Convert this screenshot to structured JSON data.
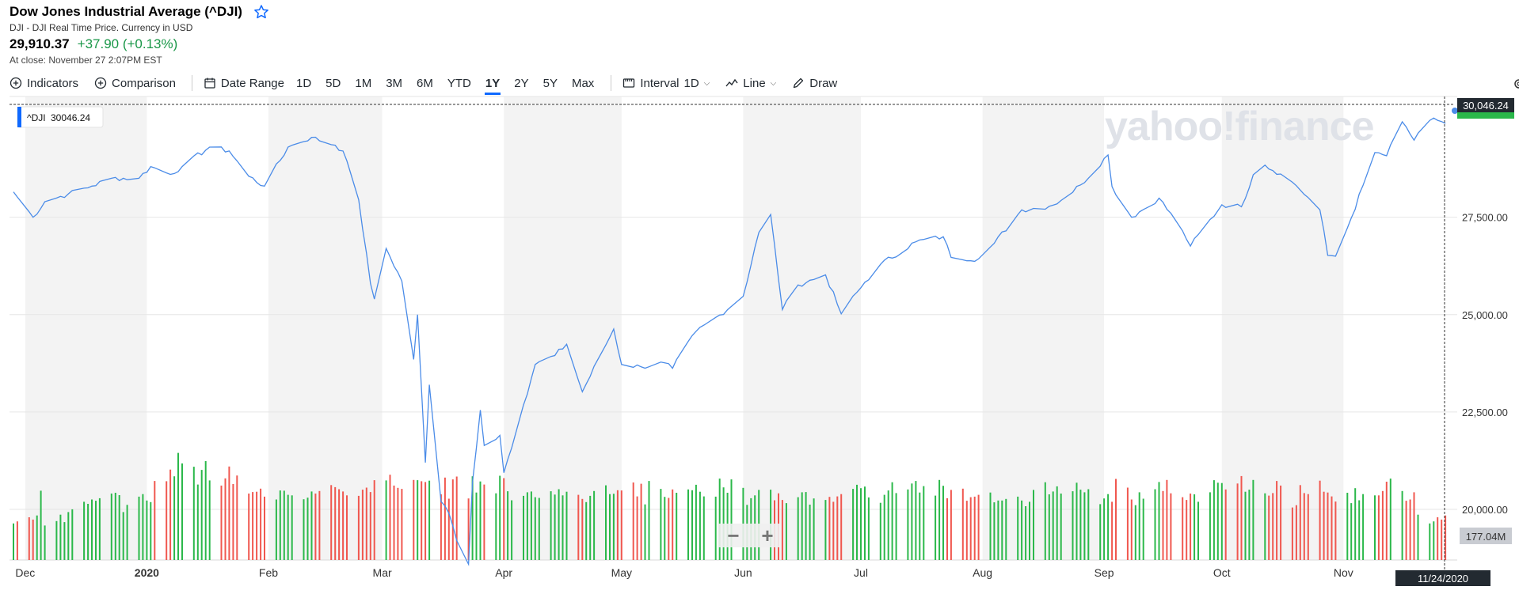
{
  "header": {
    "title": "Dow Jones Industrial Average (^DJI)",
    "subtitle": "DJI - DJI Real Time Price. Currency in USD",
    "price": "29,910.37",
    "change": "+37.90 (+0.13%)",
    "at_close": "At close: November 27 2:07PM EST"
  },
  "toolbar": {
    "indicators": "Indicators",
    "comparison": "Comparison",
    "date_range": "Date Range",
    "ranges": [
      "1D",
      "5D",
      "1M",
      "3M",
      "6M",
      "YTD",
      "1Y",
      "2Y",
      "5Y",
      "Max"
    ],
    "active_range": "1Y",
    "interval_label": "Interval",
    "interval_value": "1D",
    "chart_type": "Line",
    "draw": "Draw"
  },
  "tooltip": {
    "symbol": "^DJI",
    "value": "30046.24"
  },
  "price_tag": "30,046.24",
  "volume_tag": "177.04M",
  "date_tag": "11/24/2020",
  "watermark": "yahoo!finance",
  "zoom": {
    "minus": "−",
    "plus": "+"
  },
  "colors": {
    "line": "#4b8ce8",
    "up": "#2bb84a",
    "down": "#f0574f",
    "band": "#f3f3f3",
    "accent": "#0f69ff",
    "positive": "#1a9748"
  },
  "chart_data": {
    "type": "line",
    "title": "",
    "xlabel": "",
    "ylabel": "",
    "ylim": [
      18700,
      30600
    ],
    "yticks": [
      20000,
      22500,
      25000,
      27500
    ],
    "ytick_labels": [
      "20,000.00",
      "22,500.00",
      "25,000.00",
      "27,500.00"
    ],
    "month_labels": [
      "Dec",
      "2020",
      "Feb",
      "Mar",
      "Apr",
      "May",
      "Jun",
      "Jul",
      "Aug",
      "Sep",
      "Oct",
      "Nov"
    ],
    "grid": true,
    "series": [
      {
        "anchors": [
          [
            "2019-11-28",
            28150
          ],
          [
            "2019-12-03",
            27500
          ],
          [
            "2019-12-06",
            27900
          ],
          [
            "2019-12-12",
            28100
          ],
          [
            "2019-12-18",
            28300
          ],
          [
            "2019-12-23",
            28500
          ],
          [
            "2019-12-30",
            28500
          ],
          [
            "2020-01-02",
            28800
          ],
          [
            "2020-01-07",
            28600
          ],
          [
            "2020-01-10",
            28800
          ],
          [
            "2020-01-17",
            29300
          ],
          [
            "2020-01-22",
            29200
          ],
          [
            "2020-01-27",
            28550
          ],
          [
            "2020-01-31",
            28300
          ],
          [
            "2020-02-06",
            29300
          ],
          [
            "2020-02-12",
            29550
          ],
          [
            "2020-02-18",
            29350
          ],
          [
            "2020-02-20",
            29200
          ],
          [
            "2020-02-24",
            27950
          ],
          [
            "2020-02-27",
            25800
          ],
          [
            "2020-02-28",
            25400
          ],
          [
            "2020-03-02",
            26700
          ],
          [
            "2020-03-06",
            25860
          ],
          [
            "2020-03-09",
            23850
          ],
          [
            "2020-03-10",
            25000
          ],
          [
            "2020-03-12",
            21200
          ],
          [
            "2020-03-13",
            23200
          ],
          [
            "2020-03-16",
            20200
          ],
          [
            "2020-03-18",
            19900
          ],
          [
            "2020-03-20",
            19200
          ],
          [
            "2020-03-23",
            18590
          ],
          [
            "2020-03-24",
            20700
          ],
          [
            "2020-03-26",
            22550
          ],
          [
            "2020-03-27",
            21640
          ],
          [
            "2020-03-31",
            21900
          ],
          [
            "2020-04-01",
            20940
          ],
          [
            "2020-04-06",
            22680
          ],
          [
            "2020-04-09",
            23720
          ],
          [
            "2020-04-14",
            23950
          ],
          [
            "2020-04-17",
            24240
          ],
          [
            "2020-04-21",
            23020
          ],
          [
            "2020-04-29",
            24630
          ],
          [
            "2020-05-01",
            23720
          ],
          [
            "2020-05-06",
            23660
          ],
          [
            "2020-05-12",
            23760
          ],
          [
            "2020-05-14",
            23620
          ],
          [
            "2020-05-20",
            24570
          ],
          [
            "2020-05-26",
            24990
          ],
          [
            "2020-06-01",
            25470
          ],
          [
            "2020-06-05",
            27110
          ],
          [
            "2020-06-08",
            27570
          ],
          [
            "2020-06-11",
            25130
          ],
          [
            "2020-06-15",
            25760
          ],
          [
            "2020-06-22",
            26020
          ],
          [
            "2020-06-26",
            25020
          ],
          [
            "2020-07-02",
            25830
          ],
          [
            "2020-07-06",
            26290
          ],
          [
            "2020-07-15",
            26870
          ],
          [
            "2020-07-22",
            27000
          ],
          [
            "2020-07-24",
            26470
          ],
          [
            "2020-07-31",
            26430
          ],
          [
            "2020-08-04",
            26830
          ],
          [
            "2020-08-11",
            27690
          ],
          [
            "2020-08-18",
            27780
          ],
          [
            "2020-08-21",
            27930
          ],
          [
            "2020-08-26",
            28330
          ],
          [
            "2020-09-02",
            29100
          ],
          [
            "2020-09-03",
            28290
          ],
          [
            "2020-09-08",
            27500
          ],
          [
            "2020-09-15",
            27990
          ],
          [
            "2020-09-21",
            27150
          ],
          [
            "2020-09-23",
            26760
          ],
          [
            "2020-10-01",
            27820
          ],
          [
            "2020-10-06",
            27770
          ],
          [
            "2020-10-09",
            28590
          ],
          [
            "2020-10-12",
            28840
          ],
          [
            "2020-10-16",
            28610
          ],
          [
            "2020-10-20",
            28310
          ],
          [
            "2020-10-26",
            27690
          ],
          [
            "2020-10-28",
            26520
          ],
          [
            "2020-10-30",
            26500
          ],
          [
            "2020-11-03",
            27480
          ],
          [
            "2020-11-06",
            28320
          ],
          [
            "2020-11-09",
            29160
          ],
          [
            "2020-11-12",
            29080
          ],
          [
            "2020-11-16",
            29950
          ],
          [
            "2020-11-19",
            29480
          ],
          [
            "2020-11-24",
            30046.24
          ],
          [
            "2020-11-27",
            29910.37
          ]
        ]
      }
    ],
    "volume": {
      "values_millions": [
        142,
        150,
        166,
        157,
        173,
        269,
        134,
        151,
        176,
        147,
        186,
        197,
        226,
        218,
        235,
        230,
        240,
        258,
        261,
        252,
        186,
        214,
        246,
        256,
        231,
        225,
        307,
        306,
        351,
        325,
        416,
        375,
        362,
        293,
        350,
        384,
        309,
        289,
        317,
        363,
        295,
        328,
        258,
        264,
        265,
        277,
        246,
        235,
        270,
        269,
        253,
        251,
        236,
        242,
        266,
        258,
        268,
        291,
        283,
        275,
        266,
        251,
        249,
        273,
        281,
        264,
        310,
        309,
        331,
        289,
        280,
        276,
        311,
        310,
        306,
        303,
        308,
        255,
        320,
        238,
        313,
        324,
        239,
        325,
        262,
        305,
        293,
        259,
        327,
        318,
        267,
        232,
        249,
        263,
        266,
        244,
        241,
        267,
        254,
        275,
        251,
        265,
        253,
        237,
        225,
        249,
        268,
        290,
        256,
        257,
        271,
        270,
        301,
        247,
        296,
        216,
        307,
        276,
        245,
        241,
        274,
        261,
        274,
        271,
        292,
        265,
        247,
        246,
        316,
        282,
        261,
        313,
        280,
        214,
        240,
        251,
        272,
        273,
        232,
        259,
        233,
        221,
        244,
        263,
        264,
        215,
        239,
        233,
        245,
        226,
        247,
        256,
        276,
        292,
        279,
        285,
        243,
        222,
        253,
        270,
        302,
        260,
        274,
        297,
        307,
        262,
        287,
        250,
        311,
        288,
        240,
        272,
        277,
        230,
        244,
        246,
        253,
        262,
        224,
        231,
        231,
        237,
        246,
        231,
        209,
        226,
        272,
        302,
        255,
        266,
        286,
        258,
        267,
        300,
        273,
        263,
        275,
        217,
        239,
        256,
        226,
        315,
        281,
        235,
        213,
        263,
        238,
        275,
        303,
        268,
        311,
        259,
        244,
        233,
        258,
        255,
        226,
        263,
        310,
        300,
        299,
        274,
        297,
        326,
        265,
        273,
        311,
        259,
        250,
        260,
        307,
        289,
        204,
        213,
        291,
        260,
        256,
        308,
        265,
        262,
        247,
        227,
        261,
        221,
        279,
        232,
        256,
        251,
        251,
        268,
        304,
        316,
        268,
        230,
        235,
        263,
        176
      ],
      "ylim": [
        0,
        1800
      ]
    }
  }
}
